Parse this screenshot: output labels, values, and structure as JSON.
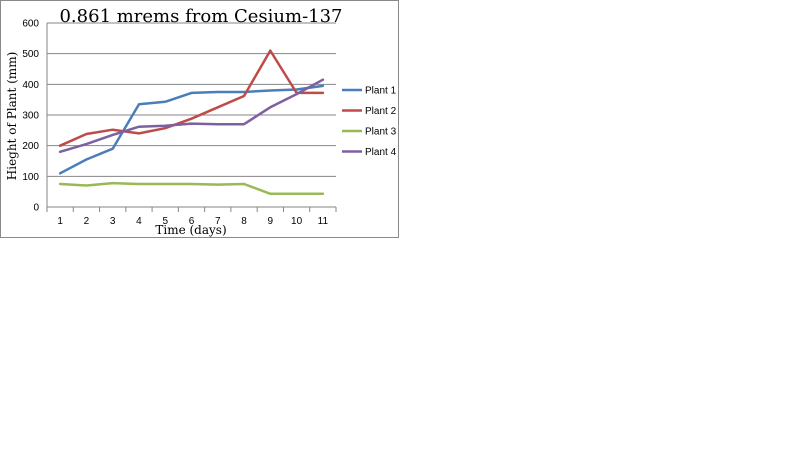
{
  "chart_data": {
    "type": "line",
    "title": "0.861 mrems from Cesium-137",
    "xlabel": "Time (days)",
    "ylabel": "Hieght of Plant (mm)",
    "x": [
      1,
      2,
      3,
      4,
      5,
      6,
      7,
      8,
      9,
      10,
      11
    ],
    "ylim": [
      0,
      600
    ],
    "yticks": [
      0,
      100,
      200,
      300,
      400,
      500,
      600
    ],
    "grid": true,
    "legend_position": "right",
    "series": [
      {
        "name": "Plant 1",
        "color": "#4a7ebb",
        "values": [
          110,
          155,
          190,
          335,
          343,
          372,
          375,
          375,
          380,
          383,
          395
        ]
      },
      {
        "name": "Plant 2",
        "color": "#be4b48",
        "values": [
          200,
          238,
          252,
          240,
          257,
          288,
          325,
          362,
          510,
          372,
          372
        ]
      },
      {
        "name": "Plant 3",
        "color": "#98b954",
        "values": [
          75,
          70,
          78,
          75,
          75,
          75,
          73,
          75,
          43,
          43,
          43
        ]
      },
      {
        "name": "Plant 4",
        "color": "#7d60a0",
        "values": [
          180,
          205,
          235,
          262,
          265,
          272,
          270,
          270,
          325,
          368,
          415
        ]
      }
    ]
  }
}
